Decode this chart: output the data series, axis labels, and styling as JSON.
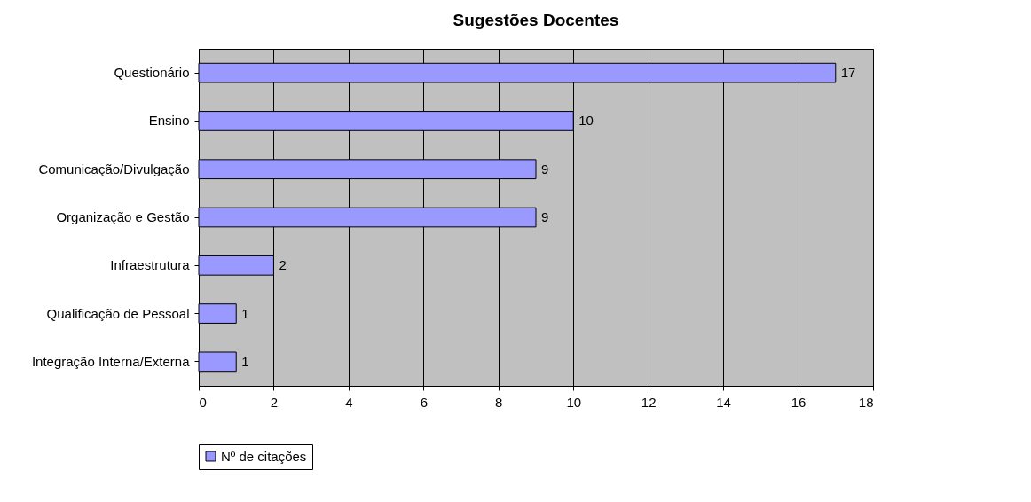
{
  "chart_data": {
    "type": "bar",
    "orientation": "horizontal",
    "title": "Sugestões Docentes",
    "categories": [
      "Questionário",
      "Ensino",
      "Comunicação/Divulgação",
      "Organização e Gestão",
      "Infraestrutura",
      "Qualificação de Pessoal",
      "Integração Interna/Externa"
    ],
    "series": [
      {
        "name": "Nº de citações",
        "color": "#9999ff",
        "values": [
          17,
          10,
          9,
          9,
          2,
          1,
          1
        ]
      }
    ],
    "xlim": [
      0,
      18
    ],
    "xticks": [
      0,
      2,
      4,
      6,
      8,
      10,
      12,
      14,
      16,
      18
    ],
    "grid": "x",
    "legend": "bottom",
    "data_labels": true
  }
}
